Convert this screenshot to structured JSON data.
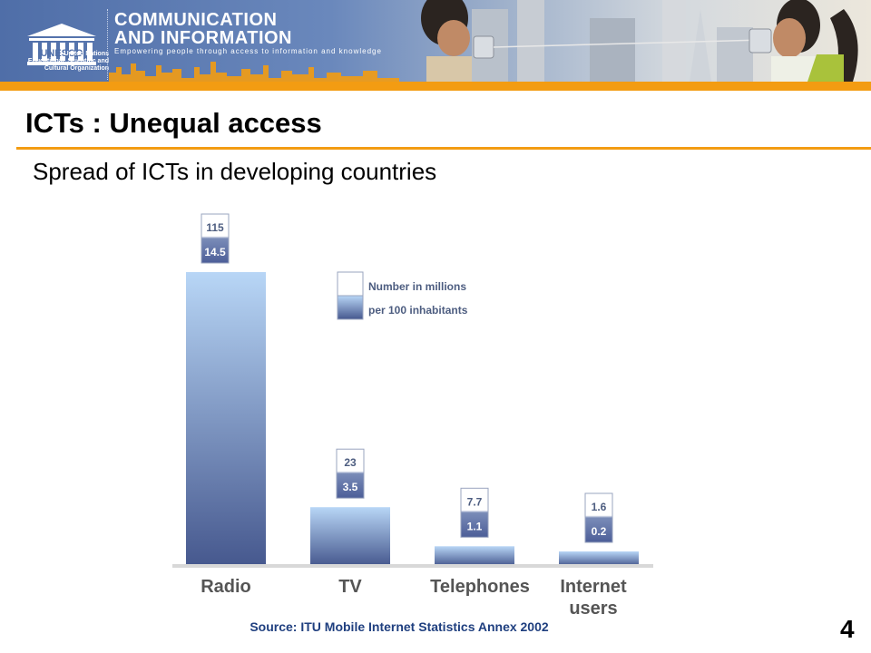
{
  "banner": {
    "logo_text": "UNESCO",
    "org_line1": "United Nations",
    "org_line2": "Educational, Scientific and",
    "org_line3": "Cultural Organization",
    "brand_line1": "COMMUNICATION",
    "brand_line2": "AND INFORMATION",
    "tagline": "Empowering people through access to information and knowledge",
    "accent_color": "#f39c12"
  },
  "page": {
    "title": "ICTs : Unequal access",
    "subtitle": "Spread of ICTs in developing countries",
    "number": "4"
  },
  "source": "Source: ITU Mobile Internet Statistics Annex 2002",
  "chart_data": {
    "type": "bar",
    "categories": [
      "Radio",
      "TV",
      "Telephones",
      "Internet users"
    ],
    "category_lines": [
      [
        "Radio"
      ],
      [
        "TV"
      ],
      [
        "Telephones"
      ],
      [
        "Internet",
        "users"
      ]
    ],
    "series": [
      {
        "name": "Number in millions",
        "values": [
          115,
          23,
          7.7,
          1.6
        ]
      },
      {
        "name": "per 100 inhabitants",
        "values": [
          14.5,
          3.5,
          1.1,
          0.2
        ]
      }
    ],
    "bar_series": "Number in millions",
    "legend": [
      "Number in millions",
      "per 100 inhabitants"
    ],
    "legend_position": "top-center",
    "grid": false,
    "ylim": [
      0,
      115
    ],
    "colors": {
      "bar_top": "#b8d6f6",
      "bar_bottom": "#46588e",
      "label_text": "#4d5d80"
    }
  }
}
